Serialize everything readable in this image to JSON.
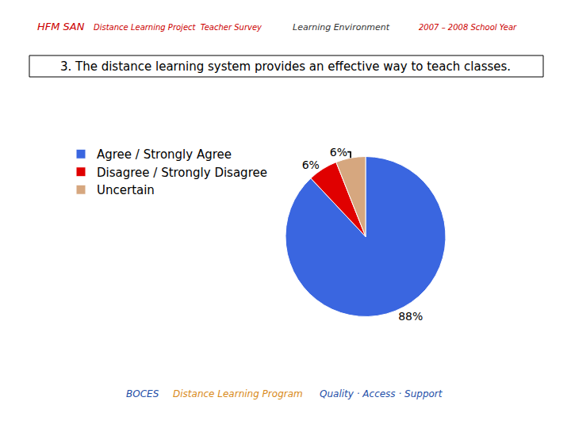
{
  "chart_data": {
    "type": "pie",
    "title": "3. The distance learning system provides an effective way to teach classes.",
    "categories": [
      "Agree / Strongly Agree",
      "Disagree / Strongly Disagree",
      "Uncertain"
    ],
    "values": [
      88,
      6,
      6
    ],
    "value_labels": [
      "88%",
      "6%",
      "6%"
    ],
    "colors": [
      "#3a66e0",
      "#e00000",
      "#d6a77f"
    ],
    "data_labels": true,
    "legend": "left",
    "annotations": [
      "HFM SAN",
      "Distance Learning Project  Teacher Survey",
      "Learning Environment",
      "2007 – 2008 School Year",
      "BOCES",
      "Distance Learning Program",
      "Quality · Access · Support"
    ]
  }
}
